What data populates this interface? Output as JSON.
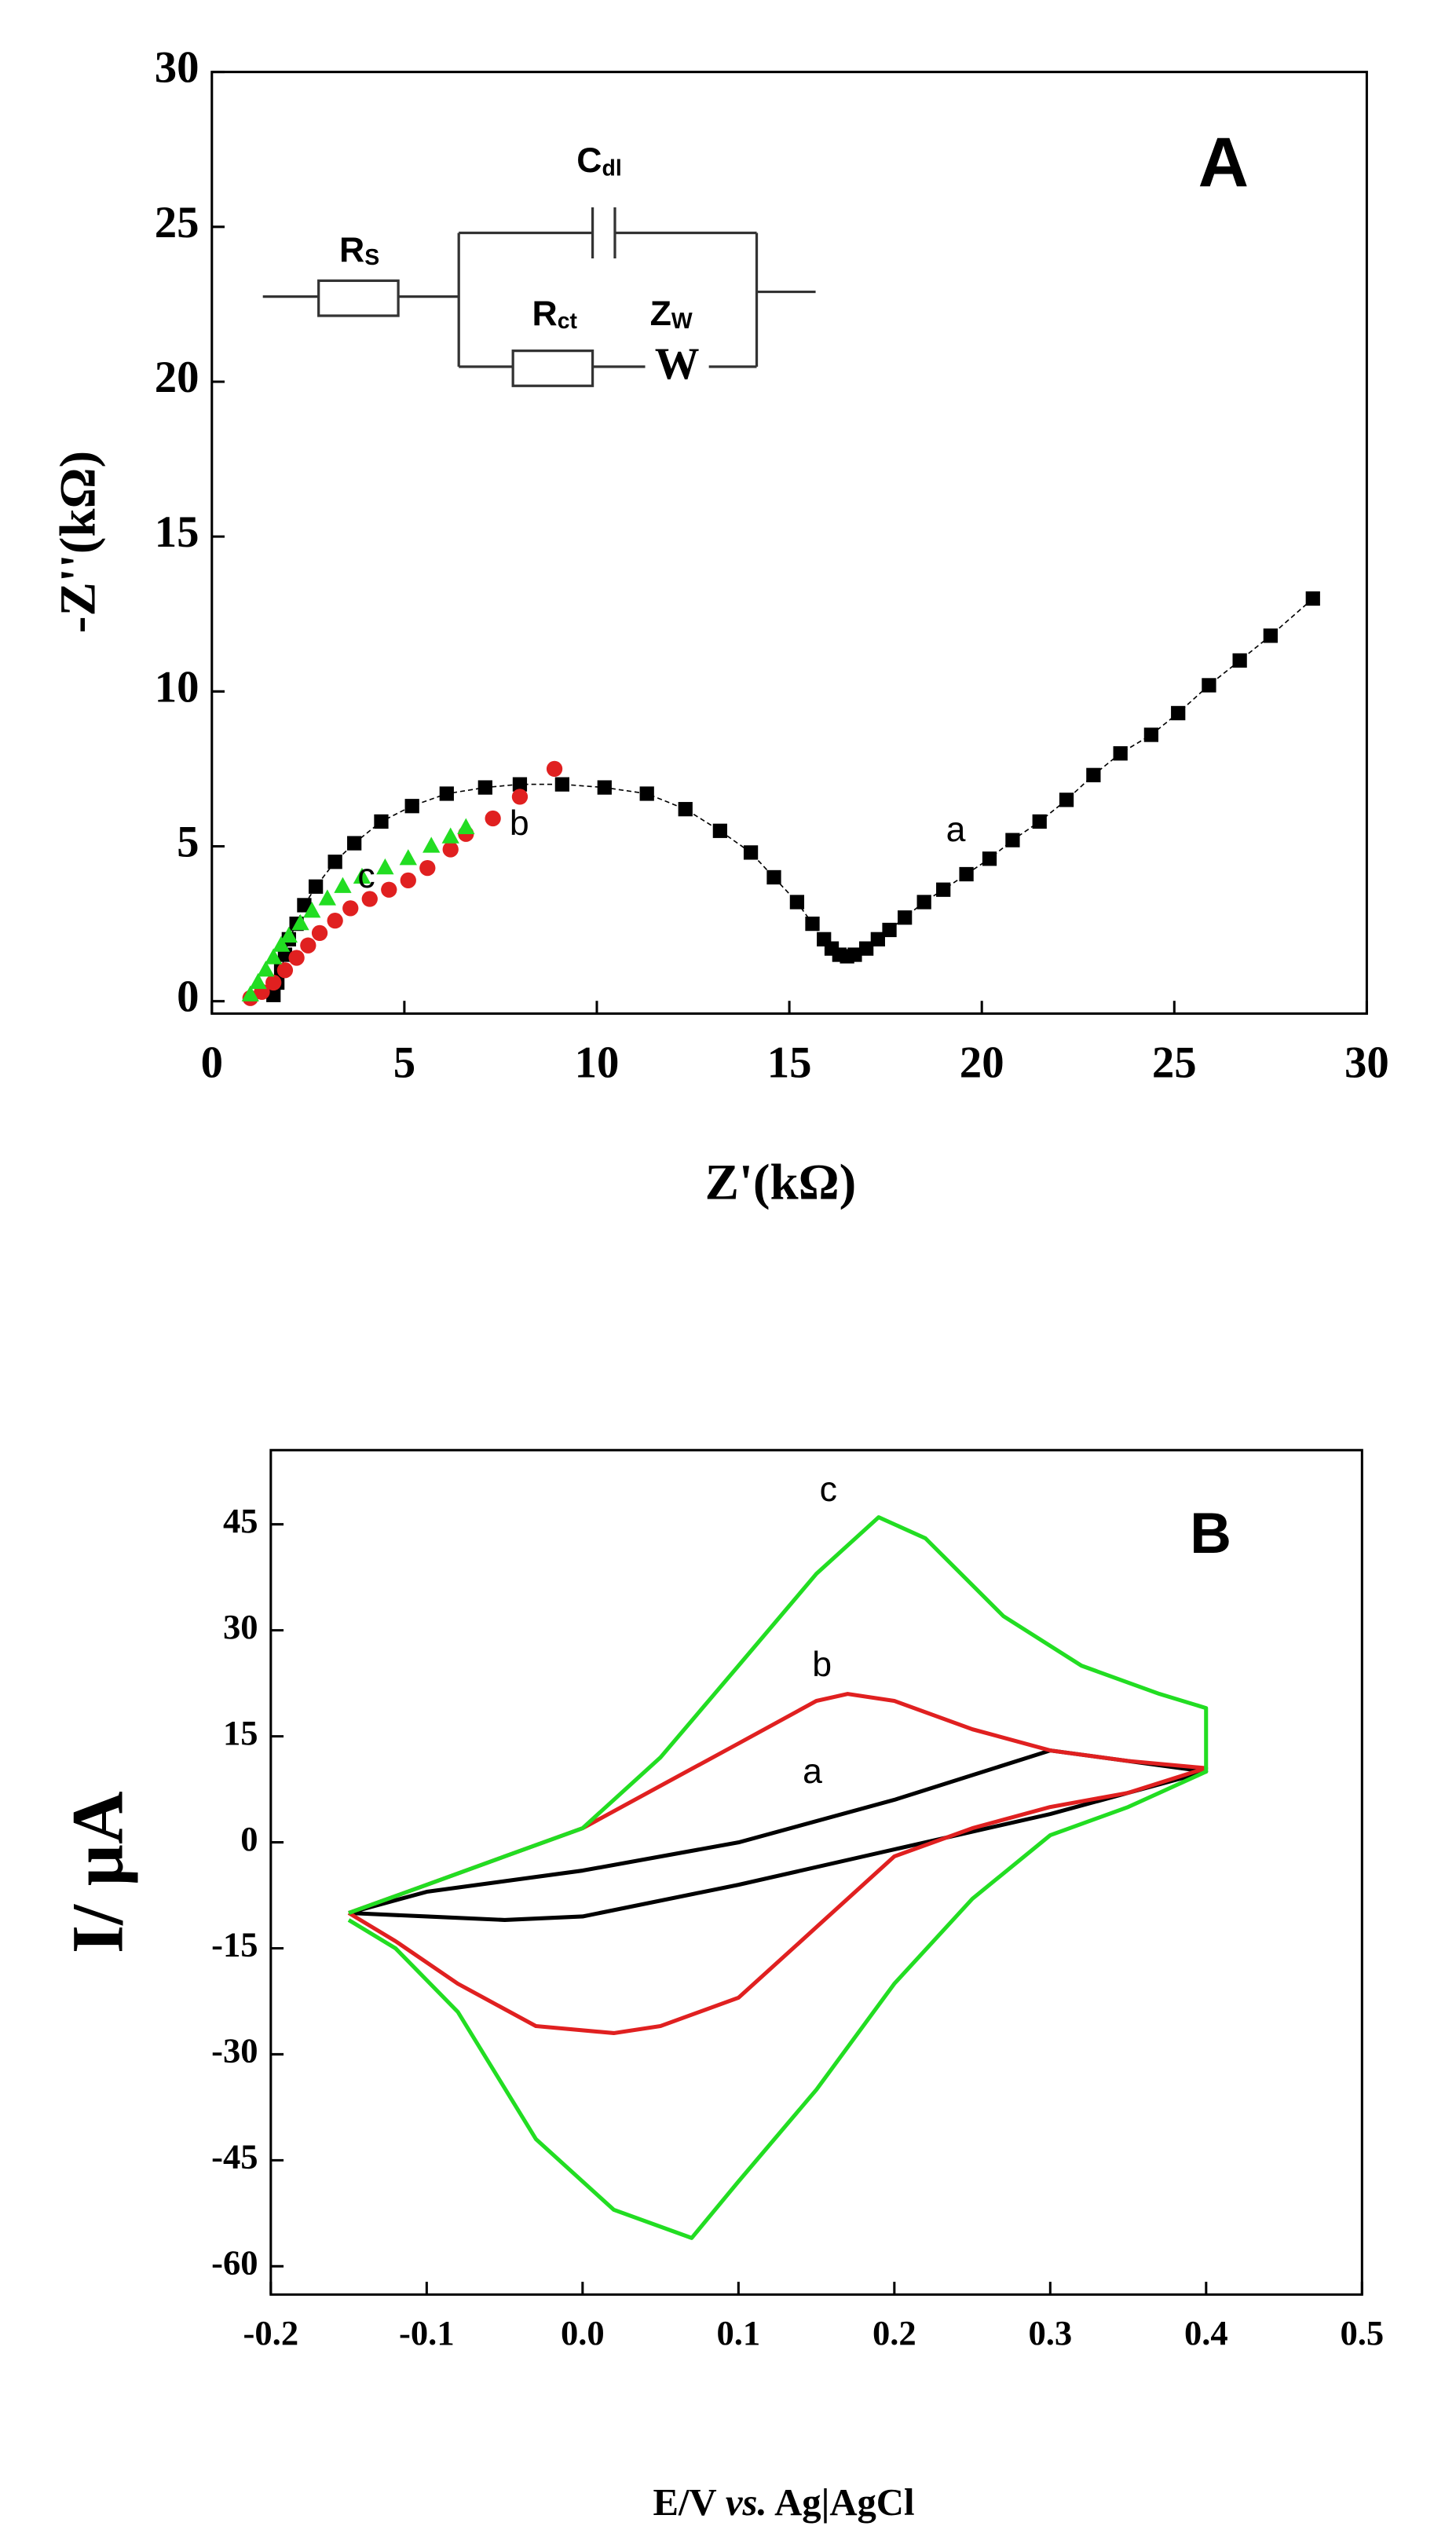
{
  "chart_data": [
    {
      "type": "scatter",
      "title": "A",
      "xlabel": "Z'(kΩ)",
      "ylabel": "-Z''(kΩ)",
      "xlim": [
        0,
        30
      ],
      "xticks": [
        0,
        5,
        10,
        15,
        20,
        25,
        30
      ],
      "ylim": [
        -0.4,
        30
      ],
      "yticks": [
        0,
        5,
        10,
        15,
        20,
        25,
        30
      ],
      "inset": {
        "rs": {
          "main": "R",
          "sub": "S"
        },
        "cdl": {
          "main": "C",
          "sub": "dl"
        },
        "rct": {
          "main": "R",
          "sub": "ct"
        },
        "zw": {
          "main": "Z",
          "sub": "W"
        },
        "w": "W"
      },
      "series": [
        {
          "name": "a",
          "color": "#000000",
          "marker": "square",
          "line": true,
          "x": [
            1.6,
            1.7,
            1.8,
            1.9,
            2.0,
            2.2,
            2.4,
            2.7,
            3.2,
            3.7,
            4.4,
            5.2,
            6.1,
            7.1,
            8.0,
            9.1,
            10.2,
            11.3,
            12.3,
            13.2,
            14.0,
            14.6,
            15.2,
            15.6,
            15.9,
            16.1,
            16.3,
            16.5,
            16.7,
            17.0,
            17.3,
            17.6,
            18.0,
            18.5,
            19.0,
            19.6,
            20.2,
            20.8,
            21.5,
            22.2,
            22.9,
            23.6,
            24.4,
            25.1,
            25.9,
            26.7,
            27.5,
            28.6
          ],
          "values": [
            0.2,
            0.6,
            1.0,
            1.5,
            2.0,
            2.5,
            3.1,
            3.7,
            4.5,
            5.1,
            5.8,
            6.3,
            6.7,
            6.9,
            7.0,
            7.0,
            6.9,
            6.7,
            6.2,
            5.5,
            4.8,
            4.0,
            3.2,
            2.5,
            2.0,
            1.7,
            1.5,
            1.45,
            1.5,
            1.7,
            2.0,
            2.3,
            2.7,
            3.2,
            3.6,
            4.1,
            4.6,
            5.2,
            5.8,
            6.5,
            7.3,
            8.0,
            8.6,
            9.3,
            10.2,
            11.0,
            11.8,
            13.0
          ]
        },
        {
          "name": "b",
          "color": "#e02020",
          "marker": "circle",
          "line": false,
          "x": [
            1.0,
            1.3,
            1.6,
            1.9,
            2.2,
            2.5,
            2.8,
            3.2,
            3.6,
            4.1,
            4.6,
            5.1,
            5.6,
            6.2,
            6.6,
            7.3,
            8.0,
            8.9
          ],
          "values": [
            0.1,
            0.3,
            0.6,
            1.0,
            1.4,
            1.8,
            2.2,
            2.6,
            3.0,
            3.3,
            3.6,
            3.9,
            4.3,
            4.9,
            5.4,
            5.9,
            6.6,
            7.5
          ]
        },
        {
          "name": "c",
          "color": "#22dd22",
          "marker": "triangle",
          "line": false,
          "x": [
            1.0,
            1.2,
            1.4,
            1.6,
            1.8,
            2.0,
            2.3,
            2.6,
            3.0,
            3.4,
            3.9,
            4.5,
            5.1,
            5.7,
            6.2,
            6.6
          ],
          "values": [
            0.2,
            0.6,
            1.0,
            1.4,
            1.8,
            2.1,
            2.5,
            2.9,
            3.3,
            3.7,
            4.0,
            4.3,
            4.6,
            5.0,
            5.3,
            5.6
          ]
        }
      ]
    },
    {
      "type": "line",
      "title": "B",
      "xlabel": [
        "E/V ",
        "vs.",
        " Ag|AgCl"
      ],
      "ylabel": "I/ µA",
      "xlim": [
        -0.2,
        0.5
      ],
      "xticks": [
        -0.2,
        -0.1,
        {
          "value": 0,
          "label": "0.0"
        },
        0.1,
        0.2,
        0.3,
        0.4,
        0.5
      ],
      "ylim": [
        -64,
        55.5
      ],
      "yticks": [
        -60,
        -45,
        -30,
        -15,
        0,
        15,
        30,
        45
      ],
      "series": [
        {
          "name": "a",
          "color": "#000000",
          "x": [
            -0.15,
            -0.1,
            0,
            0.1,
            0.2,
            0.3,
            0.4,
            0.3,
            0.2,
            0.1,
            0,
            -0.05,
            -0.1,
            -0.15
          ],
          "values": [
            -10,
            -7,
            -4,
            0,
            6,
            13,
            10,
            4,
            -1,
            -6,
            -10.5,
            -11,
            -10.5,
            -10
          ]
        },
        {
          "name": "b",
          "color": "#e02020",
          "x": [
            -0.15,
            -0.1,
            -0.05,
            0,
            0.05,
            0.1,
            0.15,
            0.17,
            0.2,
            0.25,
            0.3,
            0.35,
            0.4,
            0.35,
            0.3,
            0.25,
            0.2,
            0.15,
            0.1,
            0.05,
            0.02,
            -0.03,
            -0.08,
            -0.12,
            -0.15
          ],
          "values": [
            -10,
            -6,
            -2,
            2,
            8,
            14,
            20,
            21,
            20,
            16,
            13,
            11.5,
            10.5,
            7,
            5,
            2,
            -2,
            -12,
            -22,
            -26,
            -27,
            -26,
            -20,
            -14,
            -10
          ]
        },
        {
          "name": "c",
          "color": "#22dd22",
          "x": [
            -0.15,
            -0.1,
            -0.05,
            0,
            0.05,
            0.1,
            0.15,
            0.19,
            0.22,
            0.27,
            0.32,
            0.37,
            0.4,
            0.4,
            0.35,
            0.3,
            0.25,
            0.2,
            0.15,
            0.1,
            0.07,
            0.02,
            -0.03,
            -0.08,
            -0.12,
            -0.15
          ],
          "values": [
            -10,
            -6,
            -2,
            2,
            12,
            25,
            38,
            46,
            43,
            32,
            25,
            21,
            19,
            10,
            5,
            1,
            -8,
            -20,
            -35,
            -48,
            -56,
            -52,
            -42,
            -24,
            -15,
            -11
          ]
        }
      ]
    }
  ]
}
